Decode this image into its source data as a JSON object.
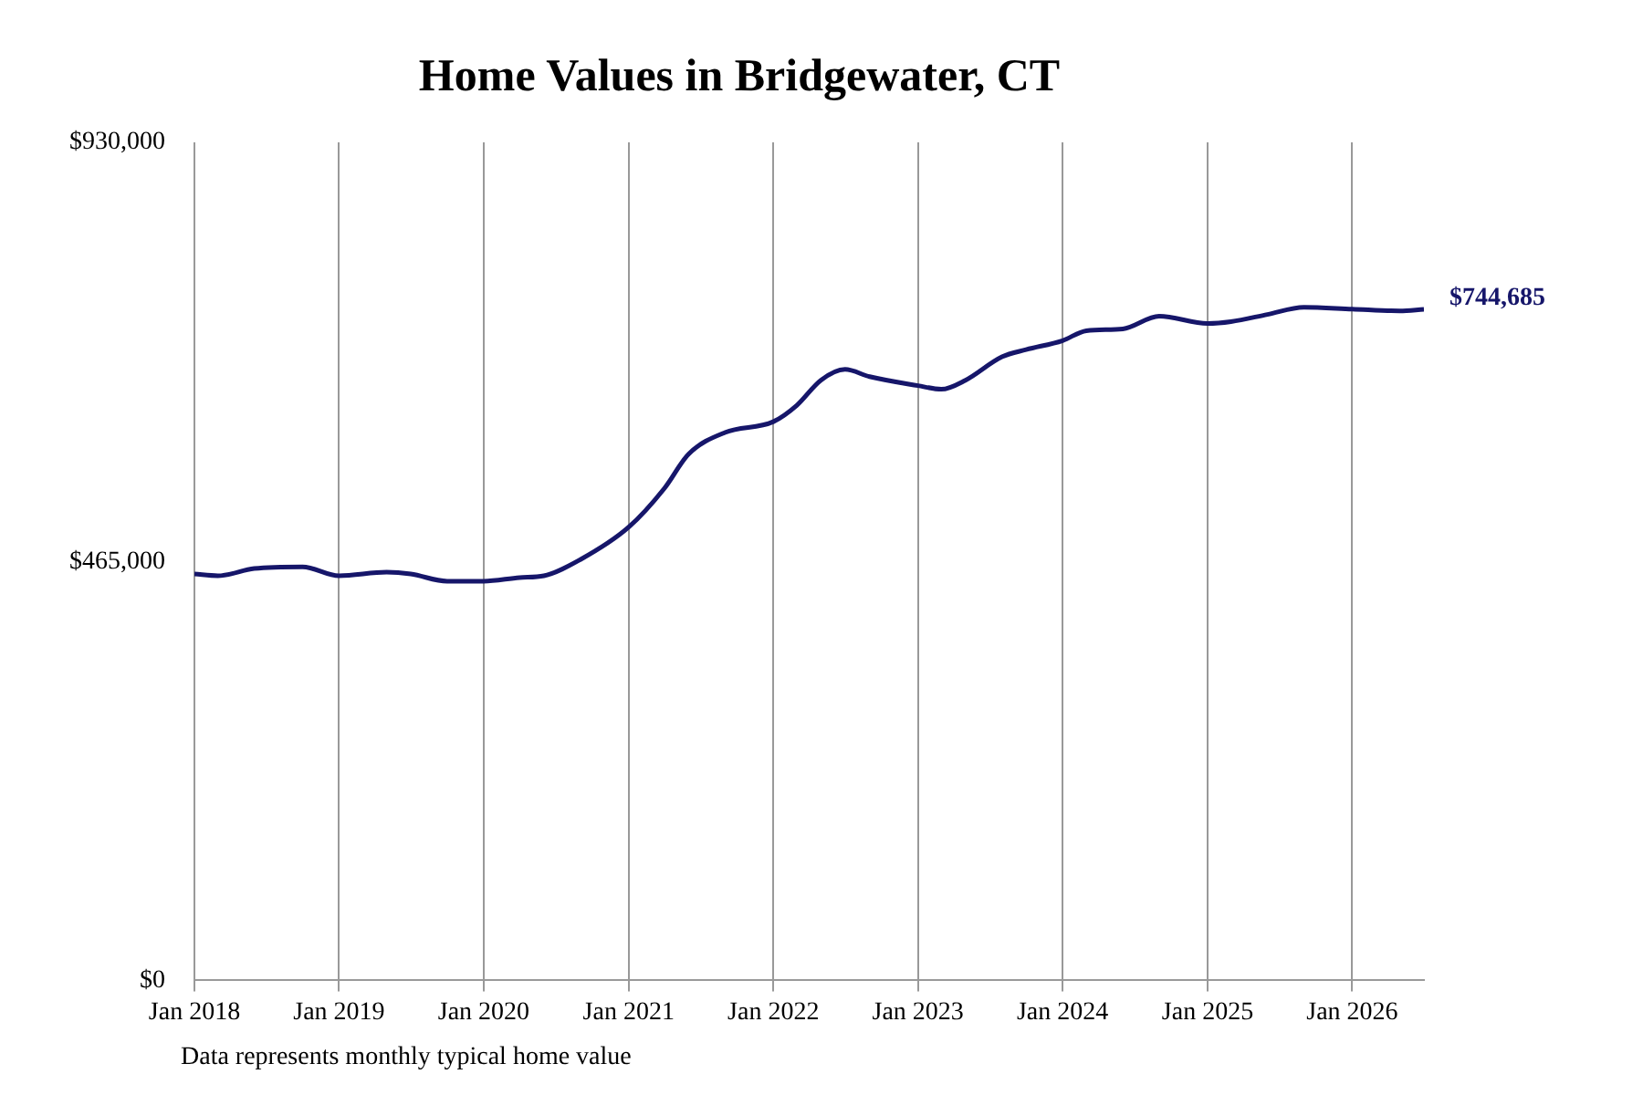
{
  "chart_data": {
    "type": "line",
    "title": "Home Values in Bridgewater, CT",
    "x": [
      "2018-01",
      "2018-03",
      "2018-06",
      "2018-10",
      "2019-01",
      "2019-05",
      "2019-07",
      "2019-10",
      "2020-01",
      "2020-04",
      "2020-06",
      "2020-09",
      "2021-01",
      "2021-04",
      "2021-06",
      "2021-09",
      "2022-01",
      "2022-03",
      "2022-05",
      "2022-07",
      "2022-09",
      "2023-01",
      "2023-03",
      "2023-05",
      "2023-08",
      "2023-10",
      "2024-01",
      "2024-03",
      "2024-06",
      "2024-09",
      "2025-01",
      "2025-03",
      "2025-06",
      "2025-09",
      "2026-01",
      "2026-05",
      "2026-07"
    ],
    "series": [
      {
        "color": "#16166a",
        "values": [
          451000,
          449000,
          457000,
          459000,
          449000,
          453000,
          451000,
          443000,
          443000,
          447000,
          449000,
          467000,
          503000,
          546000,
          584000,
          608000,
          620000,
          638000,
          666000,
          678000,
          670000,
          660000,
          656000,
          666000,
          692000,
          700000,
          710000,
          721000,
          723000,
          737000,
          729000,
          731000,
          739000,
          747000,
          745000,
          743000,
          744685
        ]
      }
    ],
    "xticks": [
      {
        "value": "2018-01",
        "label": "Jan 2018"
      },
      {
        "value": "2019-01",
        "label": "Jan 2019"
      },
      {
        "value": "2020-01",
        "label": "Jan 2020"
      },
      {
        "value": "2021-01",
        "label": "Jan 2021"
      },
      {
        "value": "2022-01",
        "label": "Jan 2022"
      },
      {
        "value": "2023-01",
        "label": "Jan 2023"
      },
      {
        "value": "2024-01",
        "label": "Jan 2024"
      },
      {
        "value": "2025-01",
        "label": "Jan 2025"
      },
      {
        "value": "2026-01",
        "label": "Jan 2026"
      }
    ],
    "xlim": [
      "2018-01",
      "2026-07"
    ],
    "ylim": [
      0,
      930000
    ],
    "yticks": [
      {
        "value": 0,
        "label": "$0"
      },
      {
        "value": 465000,
        "label": "$465,000"
      },
      {
        "value": 930000,
        "label": "$930,000"
      }
    ],
    "grid": "x",
    "legend": false,
    "marker": "none",
    "line_style": "solid",
    "annotations": [
      {
        "text": "$744,685",
        "x": "2026-07",
        "y": 744685
      },
      "Data represents monthly typical home value"
    ]
  }
}
